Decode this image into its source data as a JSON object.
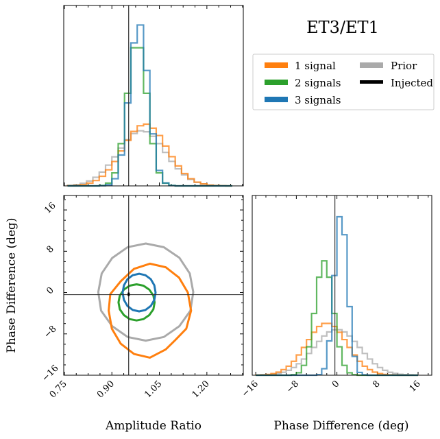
{
  "title": "ET3/ET1",
  "legend": {
    "placement": "top-right",
    "entries": [
      {
        "label": "1 signal",
        "color": "#ff7f0e"
      },
      {
        "label": "2 signals",
        "color": "#2ca02c"
      },
      {
        "label": "3 signals",
        "color": "#1f77b4"
      },
      {
        "label": "Prior",
        "color": "#aaaaaa"
      },
      {
        "label": "Injected",
        "color": "#000000"
      }
    ]
  },
  "chart_data": [
    {
      "type": "histogram",
      "panel": "amplitude-marginal",
      "xlim": [
        0.748,
        1.315
      ],
      "injected": 0.953,
      "bin_centers": [
        0.77,
        0.79,
        0.81,
        0.83,
        0.85,
        0.87,
        0.89,
        0.91,
        0.93,
        0.95,
        0.97,
        0.99,
        1.01,
        1.03,
        1.05,
        1.07,
        1.09,
        1.11,
        1.13,
        1.15,
        1.17,
        1.19,
        1.21,
        1.23,
        1.25,
        1.27
      ],
      "bin_width": 0.02,
      "series": [
        {
          "name": "Prior",
          "color": "#aaaaaa",
          "values": [
            0.004,
            0.008,
            0.016,
            0.03,
            0.053,
            0.085,
            0.128,
            0.179,
            0.233,
            0.284,
            0.322,
            0.339,
            0.333,
            0.305,
            0.26,
            0.206,
            0.151,
            0.105,
            0.068,
            0.04,
            0.022,
            0.011,
            0.005,
            0.002,
            0.001,
            0
          ]
        },
        {
          "name": "1 signal",
          "color": "#ff7f0e",
          "values": [
            0.001,
            0.003,
            0.008,
            0.017,
            0.033,
            0.059,
            0.099,
            0.15,
            0.215,
            0.28,
            0.335,
            0.37,
            0.38,
            0.355,
            0.31,
            0.245,
            0.18,
            0.123,
            0.076,
            0.044,
            0.023,
            0.012,
            0.005,
            0.002,
            0.001,
            0
          ]
        },
        {
          "name": "2 signals",
          "color": "#2ca02c",
          "values": [
            0,
            0,
            0,
            0,
            0,
            0.003,
            0.017,
            0.08,
            0.26,
            0.57,
            0.85,
            0.85,
            0.57,
            0.26,
            0.08,
            0.017,
            0.003,
            0,
            0,
            0,
            0,
            0,
            0,
            0,
            0,
            0
          ]
        },
        {
          "name": "3 signals",
          "color": "#1f77b4",
          "values": [
            0,
            0,
            0,
            0,
            0,
            0.001,
            0.007,
            0.044,
            0.19,
            0.51,
            0.88,
            0.99,
            0.71,
            0.32,
            0.095,
            0.018,
            0.002,
            0,
            0,
            0,
            0,
            0,
            0,
            0,
            0,
            0
          ]
        }
      ]
    },
    {
      "type": "contour",
      "panel": "joint",
      "xlabel": "Amplitude Ratio",
      "ylabel": "Phase Difference (deg)",
      "xlim": [
        0.748,
        1.315
      ],
      "ylim": [
        -16,
        18.8
      ],
      "xticks": [
        "0.75",
        "0.90",
        "1.05",
        "1.20"
      ],
      "yticks": [
        "−16",
        "−8",
        "0",
        "8",
        "16"
      ],
      "injected": [
        0.953,
        -0.4
      ],
      "series": [
        {
          "name": "Prior",
          "color": "#aaaaaa",
          "points": [
            [
              1.157,
              0.1
            ],
            [
              1.146,
              3.7
            ],
            [
              1.113,
              6.75
            ],
            [
              1.064,
              8.79
            ],
            [
              1.007,
              9.5
            ],
            [
              0.95,
              8.8
            ],
            [
              0.901,
              6.7
            ],
            [
              0.868,
              3.7
            ],
            [
              0.857,
              0.1
            ],
            [
              0.866,
              -3.5
            ],
            [
              0.901,
              -6.5
            ],
            [
              0.95,
              -8.6
            ],
            [
              1.007,
              -9.3
            ],
            [
              1.064,
              -8.6
            ],
            [
              1.113,
              -6.5
            ],
            [
              1.148,
              -3.5
            ]
          ]
        },
        {
          "name": "1 signal",
          "color": "#ff7f0e",
          "points": [
            [
              1.15,
              -3.5
            ],
            [
              1.14,
              0.0
            ],
            [
              1.112,
              2.9
            ],
            [
              1.07,
              4.9
            ],
            [
              1.02,
              5.6
            ],
            [
              0.97,
              4.6
            ],
            [
              0.928,
              2.2
            ],
            [
              0.895,
              -0.3
            ],
            [
              0.89,
              -3.5
            ],
            [
              0.9,
              -7.0
            ],
            [
              0.928,
              -9.9
            ],
            [
              0.97,
              -11.9
            ],
            [
              1.02,
              -12.6
            ],
            [
              1.07,
              -11.0
            ],
            [
              1.1,
              -9.2
            ],
            [
              1.135,
              -7.0
            ]
          ]
        },
        {
          "name": "2 signals",
          "color": "#2ca02c",
          "points": [
            [
              1.035,
              -1.9
            ],
            [
              1.031,
              -0.56
            ],
            [
              1.018,
              0.57
            ],
            [
              1.0,
              1.33
            ],
            [
              0.978,
              1.6
            ],
            [
              0.956,
              1.33
            ],
            [
              0.938,
              0.57
            ],
            [
              0.925,
              -0.56
            ],
            [
              0.921,
              -1.9
            ],
            [
              0.925,
              -3.24
            ],
            [
              0.938,
              -4.37
            ],
            [
              0.956,
              -5.13
            ],
            [
              0.978,
              -5.4
            ],
            [
              1.0,
              -5.13
            ],
            [
              1.018,
              -4.37
            ],
            [
              1.031,
              -3.24
            ]
          ]
        },
        {
          "name": "3 signals",
          "color": "#1f77b4",
          "points": [
            [
              1.038,
              0
            ],
            [
              1.034,
              1.4
            ],
            [
              1.023,
              2.58
            ],
            [
              1.006,
              3.37
            ],
            [
              0.986,
              3.65
            ],
            [
              0.966,
              3.37
            ],
            [
              0.949,
              2.58
            ],
            [
              0.938,
              1.4
            ],
            [
              0.934,
              0
            ],
            [
              0.938,
              -1.4
            ],
            [
              0.949,
              -2.58
            ],
            [
              0.966,
              -3.37
            ],
            [
              0.986,
              -3.65
            ],
            [
              1.006,
              -3.37
            ],
            [
              1.023,
              -2.58
            ],
            [
              1.034,
              -1.4
            ]
          ]
        }
      ]
    },
    {
      "type": "histogram",
      "panel": "phase-marginal",
      "xlabel": "Phase Difference (deg)",
      "xlim": [
        -16.7,
        18.7
      ],
      "xticks": [
        "−16",
        "−8",
        "0",
        "8",
        "16"
      ],
      "injected": -0.4,
      "bin_centers": [
        -15.5,
        -14.5,
        -13.5,
        -12.5,
        -11.5,
        -10.5,
        -9.5,
        -8.5,
        -7.5,
        -6.5,
        -5.5,
        -4.5,
        -3.5,
        -2.5,
        -1.5,
        -0.5,
        0.5,
        1.5,
        2.5,
        3.5,
        4.5,
        5.5,
        6.5,
        7.5,
        8.5,
        9.5,
        10.5,
        11.5,
        12.5,
        13.5,
        14.5,
        15.5
      ],
      "bin_width": 1,
      "series": [
        {
          "name": "Prior",
          "color": "#aaaaaa",
          "values": [
            0.001,
            0.002,
            0.003,
            0.006,
            0.011,
            0.018,
            0.03,
            0.047,
            0.07,
            0.099,
            0.133,
            0.17,
            0.207,
            0.24,
            0.265,
            0.278,
            0.278,
            0.265,
            0.24,
            0.207,
            0.17,
            0.133,
            0.099,
            0.07,
            0.047,
            0.03,
            0.018,
            0.011,
            0.006,
            0.003,
            0.002,
            0.001
          ]
        },
        {
          "name": "1 signal",
          "color": "#ff7f0e",
          "values": [
            0.001,
            0.002,
            0.005,
            0.01,
            0.019,
            0.034,
            0.055,
            0.085,
            0.124,
            0.17,
            0.218,
            0.263,
            0.298,
            0.317,
            0.317,
            0.298,
            0.263,
            0.218,
            0.17,
            0.124,
            0.085,
            0.055,
            0.034,
            0.019,
            0.01,
            0.005,
            0.002,
            0.001,
            0,
            0,
            0,
            0
          ]
        },
        {
          "name": "2 signals",
          "color": "#2ca02c",
          "values": [
            0,
            0,
            0,
            0,
            0,
            0,
            0,
            0.003,
            0.015,
            0.06,
            0.174,
            0.378,
            0.6,
            0.7,
            0.6,
            0.378,
            0.174,
            0.06,
            0.015,
            0.003,
            0,
            0,
            0,
            0,
            0,
            0,
            0,
            0,
            0,
            0,
            0,
            0
          ]
        },
        {
          "name": "3 signals",
          "color": "#1f77b4",
          "values": [
            0,
            0,
            0,
            0,
            0,
            0,
            0,
            0,
            0,
            0,
            0,
            0,
            0.004,
            0.04,
            0.21,
            0.61,
            0.97,
            0.86,
            0.42,
            0.115,
            0.017,
            0.002,
            0,
            0,
            0,
            0,
            0,
            0,
            0,
            0,
            0,
            0
          ]
        }
      ]
    }
  ]
}
